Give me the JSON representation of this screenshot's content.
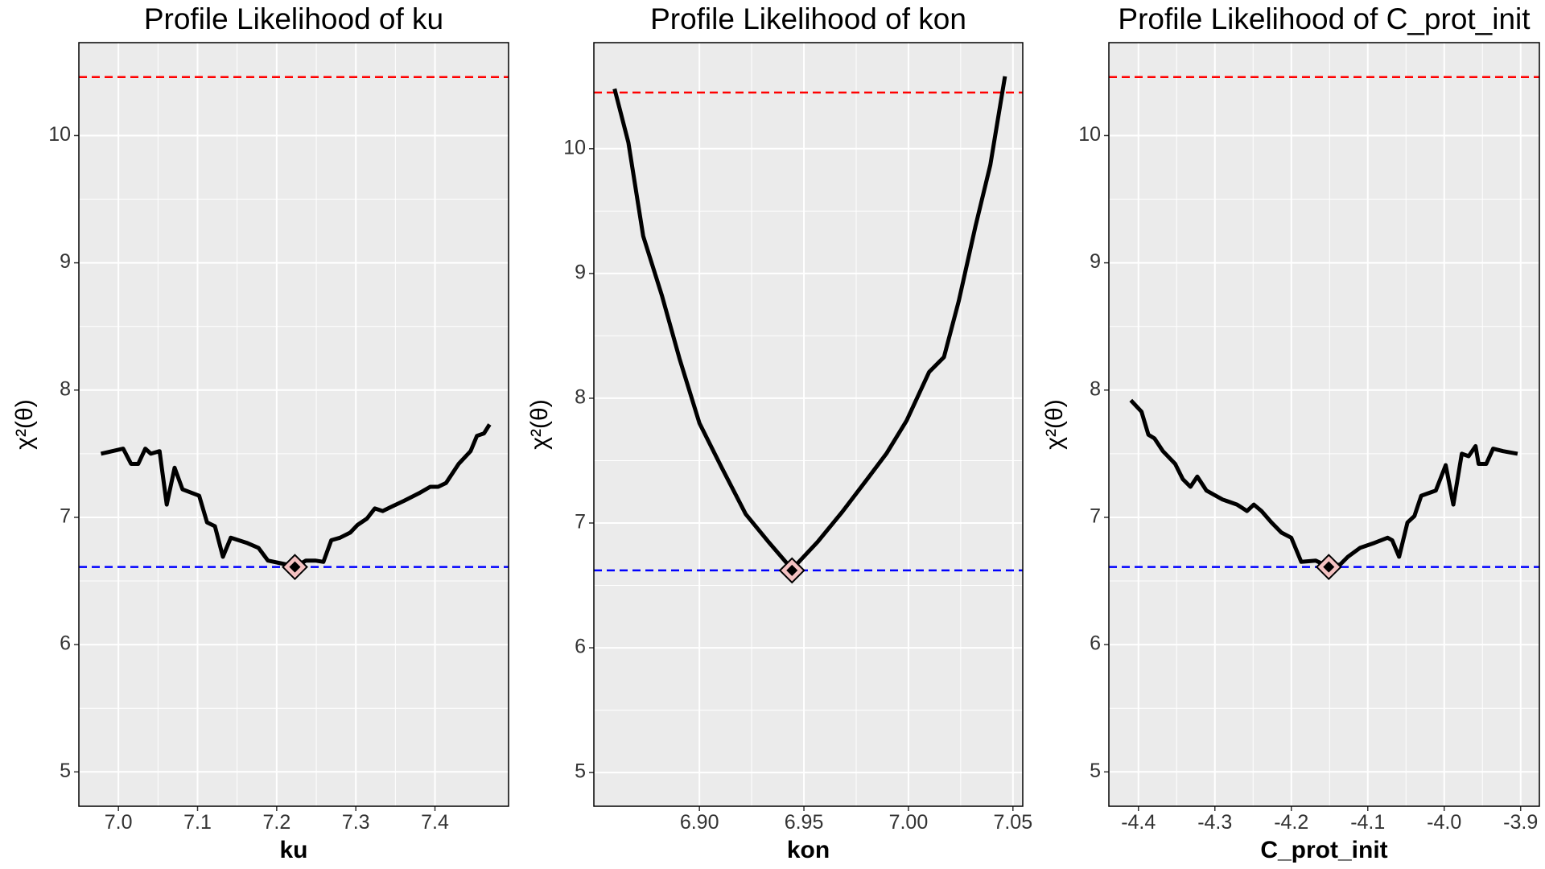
{
  "chart_data": [
    {
      "type": "line",
      "title": "Profile Likelihood of ku",
      "x_label": "ku",
      "y_label": "χ²(θ)",
      "x": [
        6.978,
        7.006,
        7.016,
        7.025,
        7.034,
        7.041,
        7.052,
        7.061,
        7.071,
        7.081,
        7.102,
        7.112,
        7.122,
        7.132,
        7.142,
        7.162,
        7.177,
        7.189,
        7.212,
        7.223,
        7.237,
        7.249,
        7.259,
        7.269,
        7.28,
        7.293,
        7.302,
        7.314,
        7.324,
        7.334,
        7.344,
        7.361,
        7.38,
        7.394,
        7.404,
        7.414,
        7.43,
        7.445,
        7.453,
        7.462,
        7.469
      ],
      "values": [
        7.5,
        7.54,
        7.42,
        7.42,
        7.54,
        7.5,
        7.52,
        7.1,
        7.39,
        7.22,
        7.17,
        6.96,
        6.93,
        6.69,
        6.84,
        6.8,
        6.76,
        6.66,
        6.63,
        6.61,
        6.66,
        6.66,
        6.65,
        6.82,
        6.84,
        6.88,
        6.94,
        6.99,
        7.07,
        7.05,
        7.08,
        7.13,
        7.19,
        7.24,
        7.24,
        7.27,
        7.42,
        7.52,
        7.64,
        7.66,
        7.73
      ],
      "color": "#000000",
      "hlines": [
        {
          "value": 10.46,
          "color": "#ff0000"
        },
        {
          "value": 6.61,
          "color": "#0000ff"
        }
      ],
      "highlight": {
        "x": 7.223,
        "y": 6.61,
        "color": "#f4c2c2"
      },
      "xlim": [
        6.95,
        7.493
      ],
      "xticks": [
        {
          "value": 7,
          "label": "7.0"
        },
        7.1,
        7.2,
        7.3,
        7.4
      ],
      "ylim": [
        4.73,
        10.73
      ],
      "yticks": [
        5,
        6,
        7,
        8,
        9,
        10
      ],
      "grid": true
    },
    {
      "type": "line",
      "title": "Profile Likelihood of kon",
      "x_label": "kon",
      "y_label": "χ²(θ)",
      "x": [
        6.8594,
        6.866,
        6.8731,
        6.8821,
        6.8906,
        6.9,
        6.9108,
        6.9222,
        6.933,
        6.9443,
        6.9566,
        6.9684,
        6.9802,
        6.9896,
        6.9991,
        7.0099,
        7.017,
        7.0241,
        7.0321,
        7.0392,
        7.0462
      ],
      "values": [
        10.48,
        10.05,
        9.3,
        8.82,
        8.31,
        7.8,
        7.44,
        7.07,
        6.85,
        6.63,
        6.85,
        7.09,
        7.35,
        7.56,
        7.82,
        8.21,
        8.33,
        8.78,
        9.38,
        9.87,
        10.58
      ],
      "color": "#000000",
      "hlines": [
        {
          "value": 10.45,
          "color": "#ff0000"
        },
        {
          "value": 6.62,
          "color": "#0000ff"
        }
      ],
      "highlight": {
        "x": 6.9443,
        "y": 6.62,
        "color": "#f4c2c2"
      },
      "xlim": [
        6.8495,
        7.0547
      ],
      "xticks": [
        {
          "value": 6.9,
          "label": "6.90"
        },
        6.95,
        {
          "value": 7,
          "label": "7.00"
        },
        {
          "value": 7.05,
          "label": "7.05"
        }
      ],
      "ylim": [
        4.73,
        10.85
      ],
      "yticks": [
        5,
        6,
        7,
        8,
        9,
        10
      ],
      "grid": true
    },
    {
      "type": "line",
      "title": "Profile Likelihood of C_prot_init",
      "x_label": "C_prot_init",
      "y_label": "χ²(θ)",
      "x": [
        -4.41,
        -4.396,
        -4.387,
        -4.379,
        -4.368,
        -4.352,
        -4.342,
        -4.332,
        -4.323,
        -4.311,
        -4.29,
        -4.271,
        -4.258,
        -4.249,
        -4.239,
        -4.226,
        -4.213,
        -4.2,
        -4.187,
        -4.168,
        -4.151,
        -4.136,
        -4.126,
        -4.11,
        -4.091,
        -4.074,
        -4.068,
        -4.059,
        -4.048,
        -4.039,
        -4.03,
        -4.011,
        -3.998,
        -3.988,
        -3.977,
        -3.968,
        -3.959,
        -3.955,
        -3.945,
        -3.936,
        -3.923,
        -3.904
      ],
      "values": [
        7.92,
        7.83,
        7.65,
        7.62,
        7.52,
        7.42,
        7.3,
        7.24,
        7.32,
        7.21,
        7.14,
        7.1,
        7.05,
        7.1,
        7.05,
        6.96,
        6.88,
        6.84,
        6.65,
        6.66,
        6.61,
        6.63,
        6.69,
        6.76,
        6.8,
        6.84,
        6.82,
        6.69,
        6.96,
        7.01,
        7.17,
        7.21,
        7.41,
        7.1,
        7.5,
        7.48,
        7.56,
        7.42,
        7.42,
        7.54,
        7.52,
        7.5
      ],
      "color": "#000000",
      "hlines": [
        {
          "value": 10.46,
          "color": "#ff0000"
        },
        {
          "value": 6.61,
          "color": "#0000ff"
        }
      ],
      "highlight": {
        "x": -4.151,
        "y": 6.61,
        "color": "#f4c2c2"
      },
      "xlim": [
        -4.4387,
        -3.8755
      ],
      "xticks": [
        -4.4,
        -4.3,
        -4.2,
        -4.1,
        {
          "value": -4,
          "label": "-4.0"
        },
        -3.9
      ],
      "ylim": [
        4.73,
        10.73
      ],
      "yticks": [
        5,
        6,
        7,
        8,
        9,
        10
      ],
      "grid": true
    }
  ]
}
